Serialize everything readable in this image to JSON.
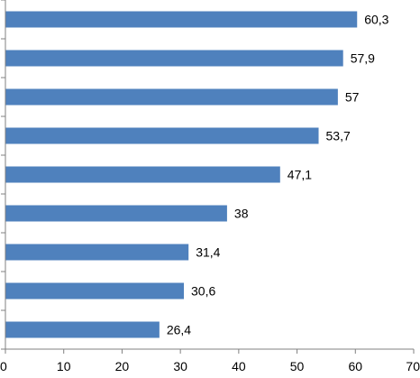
{
  "chart_data": {
    "type": "bar",
    "orientation": "horizontal",
    "title": "",
    "xlabel": "",
    "ylabel": "",
    "categories": [
      "",
      "",
      "",
      "",
      "",
      "",
      "",
      "",
      ""
    ],
    "values": [
      60.3,
      57.9,
      57,
      53.7,
      47.1,
      38,
      31.4,
      30.6,
      26.4
    ],
    "value_labels": [
      "60,3",
      "57,9",
      "57",
      "53,7",
      "47,1",
      "38",
      "31,4",
      "30,6",
      "26,4"
    ],
    "xlim": [
      0,
      70
    ],
    "x_ticks": [
      0,
      10,
      20,
      30,
      40,
      50,
      60,
      70
    ],
    "x_tick_labels": [
      "0",
      "10",
      "20",
      "30",
      "40",
      "50",
      "60",
      "70"
    ],
    "grid": false,
    "legend": "none",
    "bar_color": "#4f81bd"
  }
}
